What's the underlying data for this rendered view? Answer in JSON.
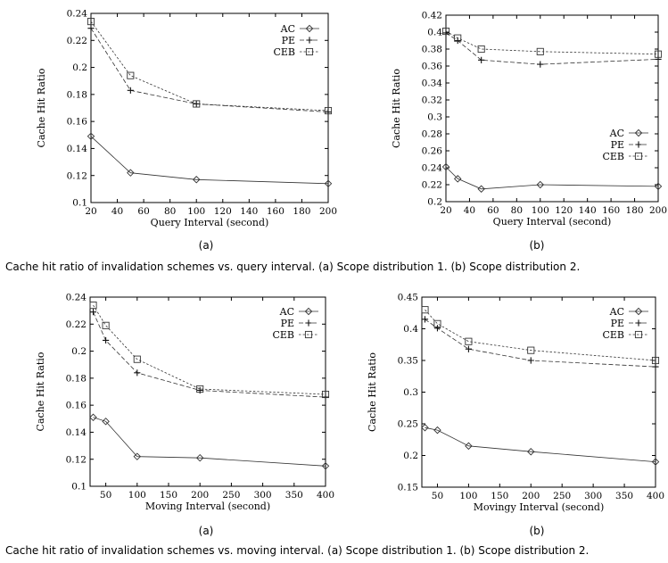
{
  "figures": [
    {
      "sublabels": [
        "(a)",
        "(b)"
      ],
      "caption": "Cache hit ratio of invalidation schemes vs. query interval. (a) Scope distribution 1. (b) Scope distribution 2."
    },
    {
      "sublabels": [
        "(a)",
        "(b)"
      ],
      "caption": "Cache hit ratio of invalidation schemes vs. moving interval. (a) Scope distribution 1. (b) Scope distribution 2."
    }
  ],
  "chart_data": [
    {
      "type": "line",
      "xlabel": "Query Interval (second)",
      "ylabel": "Cache Hit Ratio",
      "xlim": [
        20,
        200
      ],
      "ylim": [
        0.1,
        0.24
      ],
      "xticks": [
        "20",
        "40",
        "60",
        "80",
        "100",
        "120",
        "140",
        "160",
        "180",
        "200"
      ],
      "yticks": [
        "0.1",
        "0.12",
        "0.14",
        "0.16",
        "0.18",
        "0.2",
        "0.22",
        "0.24"
      ],
      "legend_position": "top-right",
      "series": [
        {
          "name": "AC",
          "marker": "diamond",
          "dash": "solid",
          "x": [
            20,
            50,
            100,
            200
          ],
          "values": [
            0.149,
            0.122,
            0.117,
            0.114
          ]
        },
        {
          "name": "PE",
          "marker": "plus",
          "dash": "long",
          "x": [
            20,
            50,
            100,
            200
          ],
          "values": [
            0.229,
            0.183,
            0.173,
            0.167
          ]
        },
        {
          "name": "CEB",
          "marker": "square",
          "dash": "short",
          "x": [
            20,
            50,
            100,
            200
          ],
          "values": [
            0.234,
            0.194,
            0.173,
            0.168
          ]
        }
      ]
    },
    {
      "type": "line",
      "xlabel": "Query Interval (second)",
      "ylabel": "Cache Hit Ratio",
      "xlim": [
        20,
        200
      ],
      "ylim": [
        0.2,
        0.42
      ],
      "xticks": [
        "20",
        "40",
        "60",
        "80",
        "100",
        "120",
        "140",
        "160",
        "180",
        "200"
      ],
      "yticks": [
        "0.2",
        "0.22",
        "0.24",
        "0.26",
        "0.28",
        "0.3",
        "0.32",
        "0.34",
        "0.36",
        "0.38",
        "0.4",
        "0.42"
      ],
      "legend_position": "center-right",
      "series": [
        {
          "name": "AC",
          "marker": "diamond",
          "dash": "solid",
          "x": [
            20,
            30,
            50,
            100,
            200
          ],
          "values": [
            0.241,
            0.227,
            0.215,
            0.22,
            0.218
          ]
        },
        {
          "name": "PE",
          "marker": "plus",
          "dash": "long",
          "x": [
            20,
            30,
            50,
            100,
            200
          ],
          "values": [
            0.399,
            0.39,
            0.367,
            0.362,
            0.368
          ]
        },
        {
          "name": "CEB",
          "marker": "square",
          "dash": "short",
          "x": [
            20,
            30,
            50,
            100,
            200
          ],
          "values": [
            0.401,
            0.393,
            0.38,
            0.377,
            0.374
          ]
        }
      ]
    },
    {
      "type": "line",
      "xlabel": "Moving Interval (second)",
      "ylabel": "Cache Hit Ratio",
      "xlim": [
        25,
        400
      ],
      "ylim": [
        0.1,
        0.24
      ],
      "xticks": [
        "50",
        "100",
        "150",
        "200",
        "250",
        "300",
        "350",
        "400"
      ],
      "yticks": [
        "0.1",
        "0.12",
        "0.14",
        "0.16",
        "0.18",
        "0.2",
        "0.22",
        "0.24"
      ],
      "legend_position": "top-right",
      "series": [
        {
          "name": "AC",
          "marker": "diamond",
          "dash": "solid",
          "x": [
            30,
            50,
            100,
            200,
            400
          ],
          "values": [
            0.151,
            0.148,
            0.122,
            0.121,
            0.115
          ]
        },
        {
          "name": "PE",
          "marker": "plus",
          "dash": "long",
          "x": [
            30,
            50,
            100,
            200,
            400
          ],
          "values": [
            0.229,
            0.208,
            0.184,
            0.171,
            0.166
          ]
        },
        {
          "name": "CEB",
          "marker": "square",
          "dash": "short",
          "x": [
            30,
            50,
            100,
            200,
            400
          ],
          "values": [
            0.234,
            0.219,
            0.194,
            0.172,
            0.168
          ]
        }
      ]
    },
    {
      "type": "line",
      "xlabel": "Movingy Interval (second)",
      "ylabel": "Cache Hit Ratio",
      "xlim": [
        25,
        400
      ],
      "ylim": [
        0.15,
        0.45
      ],
      "xticks": [
        "50",
        "100",
        "150",
        "200",
        "250",
        "300",
        "350",
        "400"
      ],
      "yticks": [
        "0.15",
        "0.2",
        "0.25",
        "0.3",
        "0.35",
        "0.4",
        "0.45"
      ],
      "legend_position": "top-right",
      "series": [
        {
          "name": "AC",
          "marker": "diamond",
          "dash": "solid",
          "x": [
            30,
            50,
            100,
            200,
            400
          ],
          "values": [
            0.244,
            0.24,
            0.215,
            0.206,
            0.19
          ]
        },
        {
          "name": "PE",
          "marker": "plus",
          "dash": "long",
          "x": [
            30,
            50,
            100,
            200,
            400
          ],
          "values": [
            0.415,
            0.401,
            0.368,
            0.35,
            0.34
          ]
        },
        {
          "name": "CEB",
          "marker": "square",
          "dash": "short",
          "x": [
            30,
            50,
            100,
            200,
            400
          ],
          "values": [
            0.43,
            0.408,
            0.38,
            0.366,
            0.35
          ]
        }
      ]
    }
  ]
}
